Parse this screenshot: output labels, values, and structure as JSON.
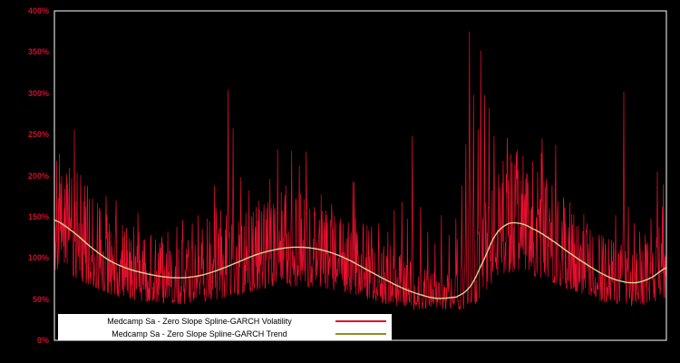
{
  "colors": {
    "background": "#000000",
    "frame": "#ffffff",
    "axis_label": "#c8102e",
    "legend_background": "#ffffff",
    "legend_text": "#000000"
  },
  "chart_data": {
    "type": "line",
    "title": "",
    "xlabel": "",
    "ylabel": "",
    "ylim": [
      0,
      400
    ],
    "grid": false,
    "legend_position": "bottom-left-inside",
    "yticks": [
      {
        "value": 0,
        "label": "0%"
      },
      {
        "value": 50,
        "label": "50%"
      },
      {
        "value": 100,
        "label": "100%"
      },
      {
        "value": 150,
        "label": "150%"
      },
      {
        "value": 200,
        "label": "200%"
      },
      {
        "value": 250,
        "label": "250%"
      },
      {
        "value": 300,
        "label": "300%"
      },
      {
        "value": 350,
        "label": "350%"
      },
      {
        "value": 400,
        "label": "400%"
      }
    ],
    "series": [
      {
        "name": "Medcamp Sa - Zero Slope Spline-GARCH Volatility",
        "color": "#e8102e",
        "legend_color": "#e8102e",
        "style": "spiky-line",
        "synthesis": {
          "points": 1350,
          "seed": 11,
          "noise_base": 0.58,
          "noise_span": 1.05,
          "burst_prob": 0.02,
          "floor": 40
        },
        "spikes": [
          [
            0.004,
            218
          ],
          [
            0.012,
            200
          ],
          [
            0.022,
            176
          ],
          [
            0.034,
            168
          ],
          [
            0.05,
            188
          ],
          [
            0.062,
            172
          ],
          [
            0.075,
            158
          ],
          [
            0.09,
            142
          ],
          [
            0.1,
            148
          ],
          [
            0.115,
            132
          ],
          [
            0.13,
            138
          ],
          [
            0.145,
            122
          ],
          [
            0.158,
            128
          ],
          [
            0.172,
            118
          ],
          [
            0.185,
            132
          ],
          [
            0.2,
            138
          ],
          [
            0.21,
            146
          ],
          [
            0.225,
            142
          ],
          [
            0.235,
            152
          ],
          [
            0.25,
            148
          ],
          [
            0.262,
            188
          ],
          [
            0.272,
            158
          ],
          [
            0.284,
            304
          ],
          [
            0.292,
            258
          ],
          [
            0.305,
            198
          ],
          [
            0.318,
            182
          ],
          [
            0.33,
            162
          ],
          [
            0.342,
            148
          ],
          [
            0.352,
            196
          ],
          [
            0.365,
            232
          ],
          [
            0.378,
            188
          ],
          [
            0.388,
            230
          ],
          [
            0.4,
            212
          ],
          [
            0.412,
            168
          ],
          [
            0.425,
            162
          ],
          [
            0.44,
            142
          ],
          [
            0.455,
            136
          ],
          [
            0.468,
            148
          ],
          [
            0.478,
            122
          ],
          [
            0.49,
            192
          ],
          [
            0.505,
            128
          ],
          [
            0.518,
            138
          ],
          [
            0.53,
            142
          ],
          [
            0.545,
            132
          ],
          [
            0.555,
            158
          ],
          [
            0.568,
            168
          ],
          [
            0.585,
            248
          ],
          [
            0.598,
            162
          ],
          [
            0.61,
            132
          ],
          [
            0.622,
            118
          ],
          [
            0.632,
            152
          ],
          [
            0.645,
            128
          ],
          [
            0.656,
            148
          ],
          [
            0.666,
            188
          ],
          [
            0.672,
            238
          ],
          [
            0.678,
            375
          ],
          [
            0.685,
            298
          ],
          [
            0.692,
            256
          ],
          [
            0.697,
            352
          ],
          [
            0.703,
            298
          ],
          [
            0.71,
            282
          ],
          [
            0.718,
            248
          ],
          [
            0.726,
            202
          ],
          [
            0.733,
            218
          ],
          [
            0.74,
            246
          ],
          [
            0.748,
            198
          ],
          [
            0.755,
            215
          ],
          [
            0.764,
            178
          ],
          [
            0.772,
            188
          ],
          [
            0.78,
            162
          ],
          [
            0.79,
            152
          ],
          [
            0.8,
            148
          ],
          [
            0.81,
            142
          ],
          [
            0.82,
            128
          ],
          [
            0.83,
            122
          ],
          [
            0.84,
            132
          ],
          [
            0.85,
            118
          ],
          [
            0.86,
            116
          ],
          [
            0.87,
            142
          ],
          [
            0.88,
            126
          ],
          [
            0.89,
            128
          ],
          [
            0.9,
            118
          ],
          [
            0.91,
            122
          ],
          [
            0.917,
            152
          ],
          [
            0.93,
            302
          ],
          [
            0.938,
            162
          ],
          [
            0.947,
            142
          ],
          [
            0.956,
            132
          ],
          [
            0.965,
            128
          ],
          [
            0.975,
            148
          ],
          [
            0.985,
            205
          ],
          [
            0.993,
            162
          ]
        ]
      },
      {
        "name": "Medcamp Sa - Zero Slope Spline-GARCH Trend",
        "color": "#d6d68c",
        "legend_color": "#8f8f2a",
        "style": "smooth-line",
        "points": {
          "x": [
            0,
            0.03,
            0.06,
            0.09,
            0.12,
            0.15,
            0.18,
            0.21,
            0.24,
            0.27,
            0.3,
            0.33,
            0.36,
            0.39,
            0.42,
            0.45,
            0.48,
            0.51,
            0.54,
            0.57,
            0.6,
            0.625,
            0.65,
            0.66,
            0.68,
            0.7,
            0.72,
            0.74,
            0.76,
            0.78,
            0.81,
            0.84,
            0.87,
            0.9,
            0.925,
            0.95,
            0.975,
            1.0
          ],
          "v": [
            146,
            132,
            113,
            97,
            87,
            81,
            77,
            76,
            79,
            86,
            95,
            104,
            110,
            113,
            112,
            107,
            98,
            86,
            74,
            63,
            55,
            51,
            52,
            54,
            66,
            95,
            127,
            141,
            142,
            136,
            123,
            107,
            92,
            79,
            72,
            70,
            76,
            88
          ]
        }
      }
    ]
  }
}
